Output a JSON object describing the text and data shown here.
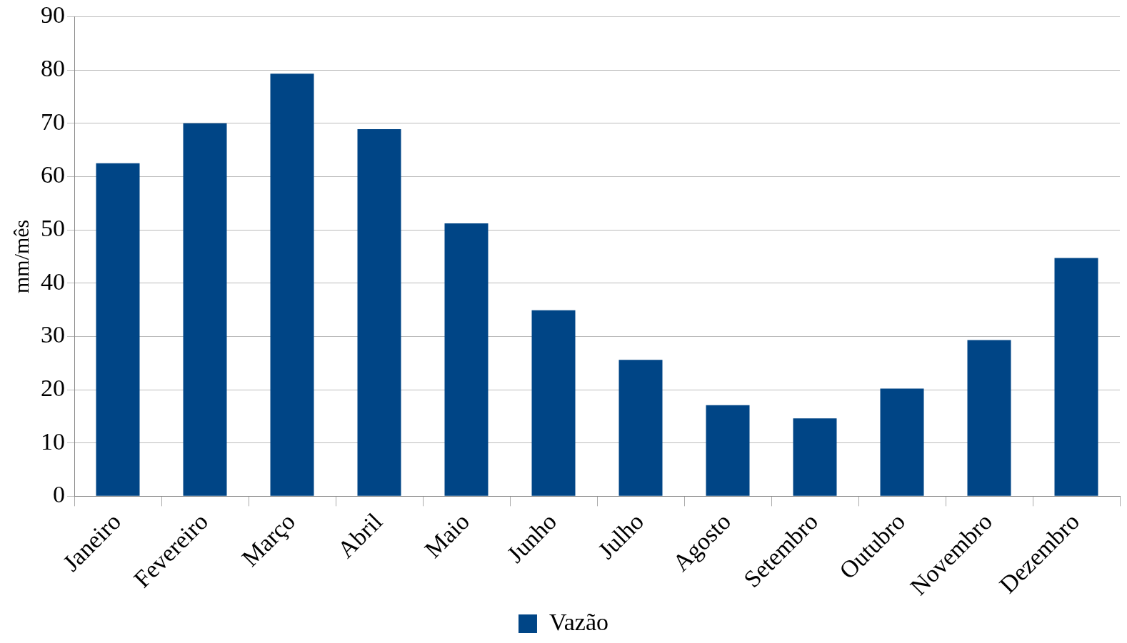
{
  "chart_data": {
    "type": "bar",
    "ylabel": "mm/mês",
    "categories": [
      "Janeiro",
      "Fevereiro",
      "Março",
      "Abril",
      "Maio",
      "Junho",
      "Julho",
      "Agosto",
      "Setembro",
      "Outubro",
      "Novembro",
      "Dezembro"
    ],
    "series": [
      {
        "name": "Vazão",
        "color": "#004586",
        "values": [
          62.5,
          70,
          79.3,
          68.9,
          51.2,
          34.9,
          25.6,
          17.1,
          14.6,
          20.2,
          29.3,
          44.7
        ]
      }
    ],
    "ylim": [
      0,
      90
    ],
    "yticks": [
      0,
      10,
      20,
      30,
      40,
      50,
      60,
      70,
      80,
      90
    ],
    "grid": "y",
    "legend": "bottom"
  }
}
